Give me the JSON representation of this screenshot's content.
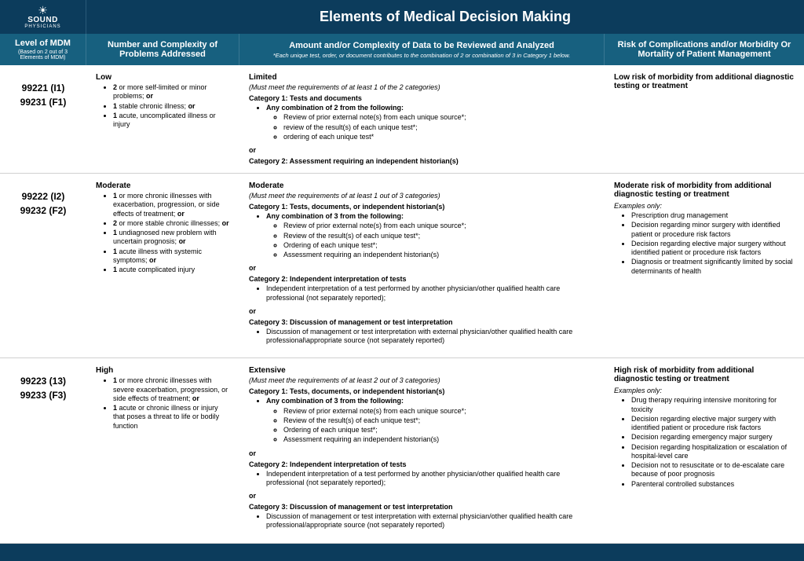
{
  "brand": {
    "icon": "☀",
    "name": "SOUND",
    "sub": "PHYSICIANS"
  },
  "title": "Elements of Medical Decision Making",
  "headers": {
    "level": "Level of MDM",
    "level_sub": "(Based on 2 out of 3 Elements of MDM)",
    "problems": "Number and Complexity of Problems Addressed",
    "data": "Amount and/or Complexity of Data to be Reviewed and Analyzed",
    "data_note": "*Each unique test, order, or document contributes to the combination of 2 or combination of 3 in Category 1 below.",
    "risk": "Risk of Complications and/or Morbidity Or Mortality of Patient Management"
  },
  "or": "or",
  "rows": [
    {
      "codes": [
        "99221 (I1)",
        "99231 (F1)"
      ],
      "problems": {
        "label": "Low",
        "items": [
          "<b>2</b> or more self-limited or minor problems; <b>or</b>",
          "<b>1</b> stable chronic illness; <b>or</b>",
          "<b>1</b> acute, uncomplicated illness or injury"
        ]
      },
      "data": {
        "label": "Limited",
        "must": "(Must meet the requirements of at least 1 of the 2 categories)",
        "cat1_title": "Category 1: Tests and documents",
        "cat1_lead": "Any combination of 2 from the following:",
        "cat1_items": [
          "Review of prior external note(s) from each unique source*;",
          "review of the result(s) of each unique test*;",
          "ordering of each unique test*"
        ],
        "cat2_title": "Category 2: Assessment requiring an independent historian(s)"
      },
      "risk": {
        "label": "Low risk of morbidity from additional diagnostic testing or treatment"
      }
    },
    {
      "codes": [
        "99222 (I2)",
        "99232 (F2)"
      ],
      "problems": {
        "label": "Moderate",
        "items": [
          "<b>1</b> or more chronic illnesses with exacerbation, progression, or side effects of treatment; <b>or</b>",
          "<b>2</b> or more stable chronic illnesses; <b>or</b>",
          "<b>1</b> undiagnosed new problem with uncertain prognosis; <b>or</b>",
          "<b>1</b> acute illness with systemic symptoms; <b>or</b>",
          "<b>1</b> acute complicated injury"
        ]
      },
      "data": {
        "label": "Moderate",
        "must": "(Must meet the requirements of at least 1 out of 3 categories)",
        "cat1_title": "Category 1: Tests, documents, or independent historian(s)",
        "cat1_lead": "Any combination of 3 from the following:",
        "cat1_items": [
          "Review of prior external note(s) from each unique source*;",
          "Review of the result(s) of each unique test*;",
          "Ordering of each unique test*;",
          "Assessment requiring an independent historian(s)"
        ],
        "cat2_title": "Category 2: Independent interpretation of tests",
        "cat2_items": [
          "Independent interpretation of a test performed by another physician/other qualified health care professional (not separately reported);"
        ],
        "cat3_title": "Category 3: Discussion of management or test interpretation",
        "cat3_items": [
          "Discussion of management or test interpretation with external physician/other qualified health care professional\\appropriate source (not separately reported)"
        ]
      },
      "risk": {
        "label": "Moderate risk of morbidity from additional diagnostic testing or treatment",
        "examples_label": "Examples only:",
        "examples": [
          "Prescription drug management",
          "Decision regarding minor surgery with identified patient or procedure risk factors",
          "Decision regarding elective major surgery without identified patient or procedure risk factors",
          "Diagnosis or treatment significantly limited by social determinants of health"
        ]
      }
    },
    {
      "codes": [
        "99223 (13)",
        "99233 (F3)"
      ],
      "problems": {
        "label": "High",
        "items": [
          "<b>1</b> or more chronic illnesses with severe exacerbation, progression, or side effects of treatment; <b>or</b>",
          "<b>1</b> acute or chronic illness or injury that poses a threat to life or bodily function"
        ]
      },
      "data": {
        "label": "Extensive",
        "must": "(Must meet the requirements of at least 2 out of 3 categories)",
        "cat1_title": "Category 1: Tests, documents, or independent historian(s)",
        "cat1_lead": "Any combination of 3 from the following:",
        "cat1_items": [
          "Review of prior external note(s) from each unique source*;",
          "Review of the result(s) of each unique test*;",
          "Ordering of each unique test*;",
          "Assessment requiring an independent historian(s)"
        ],
        "cat2_title": "Category 2: Independent interpretation of tests",
        "cat2_items": [
          "Independent interpretation of a test performed by another physician/other qualified health care professional (not separately reported);"
        ],
        "cat3_title": "Category 3: Discussion of management or test interpretation",
        "cat3_items": [
          "Discussion of management or test interpretation with external physician/other qualified health care professional/appropriate source (not separately reported)"
        ]
      },
      "risk": {
        "label": "High risk of morbidity from additional diagnostic testing or treatment",
        "examples_label": "Examples only:",
        "examples": [
          "Drug therapy requiring intensive monitoring for toxicity",
          "Decision regarding elective major surgery with identified patient or procedure risk factors",
          "Decision regarding emergency major surgery",
          "Decision regarding hospitalization or escalation of hospital-level care",
          "Decision not to resuscitate or to de-escalate care because of poor prognosis",
          "Parenteral controlled substances"
        ]
      }
    }
  ]
}
